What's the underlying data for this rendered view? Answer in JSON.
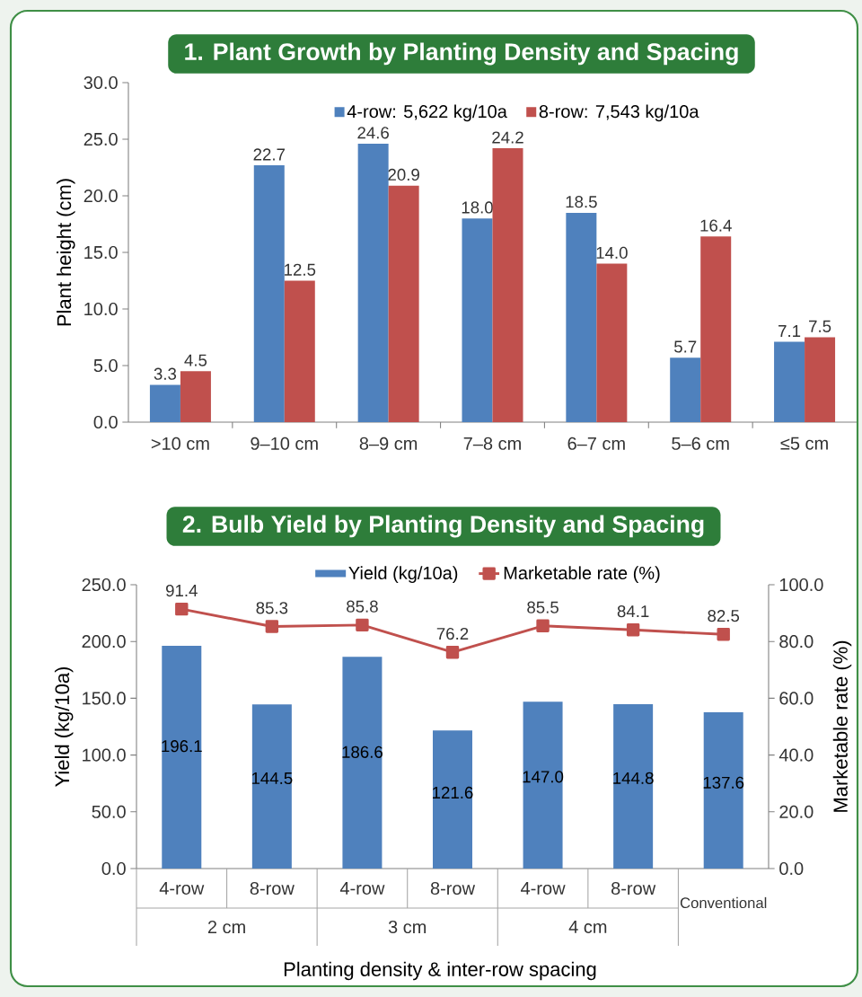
{
  "chart_data": [
    {
      "type": "bar",
      "title": "1. Plant Growth by Planting Density and Spacing",
      "ylabel": "Plant height (cm)",
      "categories": [
        ">10 cm",
        "9–10 cm",
        "8–9 cm",
        "7–8 cm",
        "6–7 cm",
        "5–6 cm",
        "≤5 cm"
      ],
      "series": [
        {
          "name": "4-row: 5,622 kg/10a",
          "color": "#4f81bd",
          "values": [
            3.3,
            22.7,
            24.6,
            18.0,
            18.5,
            5.7,
            7.1
          ],
          "value_labels": [
            "3.3",
            "22.7",
            "24.6",
            "18.0",
            "18.5",
            "5.7",
            "7.1"
          ]
        },
        {
          "name": "8-row: 7,543 kg/10a",
          "color": "#c0504d",
          "values": [
            4.5,
            12.5,
            20.9,
            24.2,
            14.0,
            16.4,
            7.5
          ],
          "value_labels": [
            "4.5",
            "12.5",
            "20.9",
            "24.2",
            "14.0",
            "16.4",
            "7.5"
          ]
        }
      ],
      "ylim": [
        0,
        30
      ],
      "yticks": [
        {
          "value": 0,
          "label": "0.0"
        },
        {
          "value": 5,
          "label": "5.0"
        },
        {
          "value": 10,
          "label": "10.0"
        },
        {
          "value": 15,
          "label": "15.0"
        },
        {
          "value": 20,
          "label": "20.0"
        },
        {
          "value": 25,
          "label": "25.0"
        },
        {
          "value": 30,
          "label": "30.0"
        }
      ],
      "legend": "top"
    },
    {
      "type": "bar",
      "title": "2. Bulb Yield by Planting Density and Spacing",
      "xlabel": "Planting density & inter-row spacing",
      "ylabel": "Yield (kg/10a)",
      "y2label": "Marketable rate (%)",
      "categories": [
        "4-row",
        "8-row",
        "4-row",
        "8-row",
        "4-row",
        "8-row",
        "Conventional"
      ],
      "series": [
        {
          "name": "Yield (kg/10a)",
          "color": "#4f81bd",
          "values": [
            196.1,
            144.5,
            186.6,
            121.6,
            147.0,
            144.8,
            137.6
          ],
          "value_labels": [
            "196.1",
            "144.5",
            "186.6",
            "121.6",
            "147.0",
            "144.8",
            "137.6"
          ]
        },
        {
          "name": "Marketable rate (%)",
          "type": "line",
          "axis": "y2",
          "color": "#c0504d",
          "values": [
            91.4,
            85.3,
            85.8,
            76.2,
            85.5,
            84.1,
            82.5
          ],
          "value_labels": [
            "91.4",
            "85.3",
            "85.8",
            "76.2",
            "85.5",
            "84.1",
            "82.5"
          ]
        }
      ],
      "ylim": [
        0,
        250
      ],
      "yticks": [
        {
          "value": 0,
          "label": "0.0"
        },
        {
          "value": 50,
          "label": "50.0"
        },
        {
          "value": 100,
          "label": "100.0"
        },
        {
          "value": 150,
          "label": "150.0"
        },
        {
          "value": 200,
          "label": "200.0"
        },
        {
          "value": 250,
          "label": "250.0"
        }
      ],
      "y2lim": [
        0,
        100
      ],
      "y2ticks": [
        {
          "value": 0,
          "label": "0.0"
        },
        {
          "value": 20,
          "label": "20.0"
        },
        {
          "value": 40,
          "label": "40.0"
        },
        {
          "value": 60,
          "label": "60.0"
        },
        {
          "value": 80,
          "label": "80.0"
        },
        {
          "value": 100,
          "label": "100.0"
        }
      ],
      "marker": "square",
      "legend": "top",
      "annotations": [
        "2 cm",
        "3 cm",
        "4 cm"
      ]
    }
  ]
}
